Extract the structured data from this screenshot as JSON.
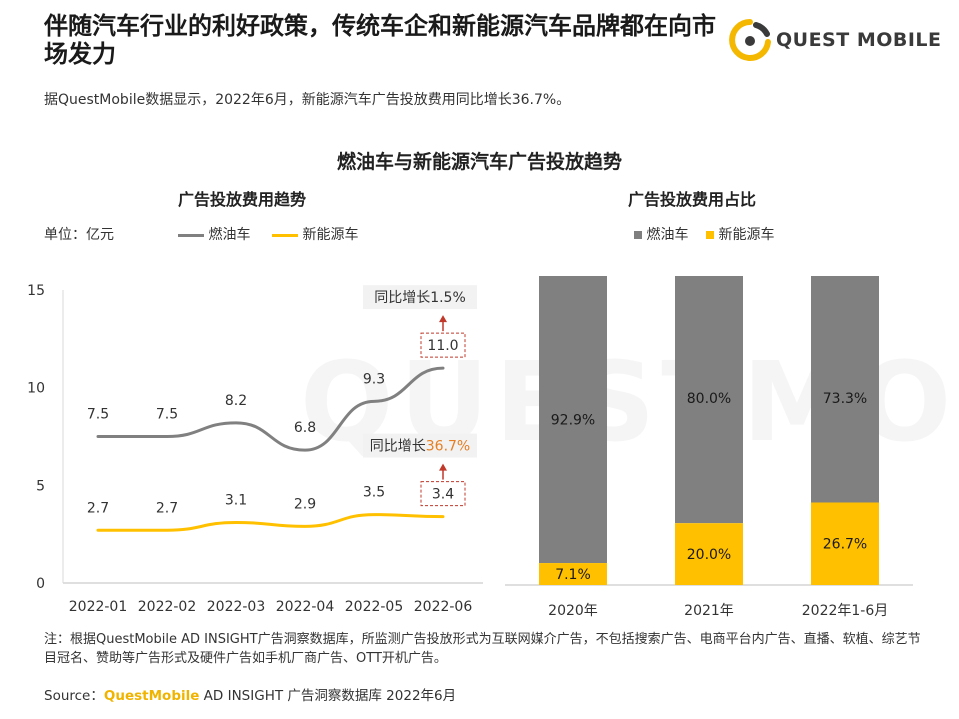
{
  "headline": "伴随汽车行业的利好政策，传统车企和新能源汽车品牌都在向市场发力",
  "logo": {
    "text": "QUEST MOBILE",
    "icon": "questmobile-logo-icon"
  },
  "subtitle": "据QuestMobile数据显示，2022年6月，新能源汽车广告投放费用同比增长36.7%。",
  "chart_heading": "燃油车与新能源汽车广告投放趋势",
  "colors": {
    "gray": "#7f7f7f",
    "yellow": "#ffc000",
    "annotation_red": "#c0392b",
    "annotation_orange": "#e67e22"
  },
  "watermark": "QUESTMOBILE",
  "chart_data": [
    {
      "type": "line",
      "title": "广告投放费用趋势",
      "unit_label": "单位：亿元",
      "categories": [
        "2022-01",
        "2022-02",
        "2022-03",
        "2022-04",
        "2022-05",
        "2022-06"
      ],
      "series": [
        {
          "name": "燃油车",
          "color": "#808080",
          "values": [
            7.5,
            7.5,
            8.2,
            6.8,
            9.3,
            11.0
          ]
        },
        {
          "name": "新能源车",
          "color": "#ffc000",
          "values": [
            2.7,
            2.7,
            3.1,
            2.9,
            3.5,
            3.4
          ]
        }
      ],
      "y_ticks": [
        "0",
        "5",
        "10",
        "15"
      ],
      "ylim": [
        0,
        15
      ],
      "annotations": [
        {
          "text_prefix": "同比增长",
          "text_value": "1.5%",
          "target": "燃油车"
        },
        {
          "text_prefix": "同比增长",
          "text_value": "36.7%",
          "target": "新能源车"
        }
      ],
      "grid": false,
      "legend_position": "top"
    },
    {
      "type": "bar",
      "stacked": true,
      "percent": true,
      "title": "广告投放费用占比",
      "categories": [
        "2020年",
        "2021年",
        "2022年1-6月"
      ],
      "series": [
        {
          "name": "燃油车",
          "color": "#808080",
          "values": [
            92.9,
            80.0,
            73.3
          ],
          "labels": [
            "92.9%",
            "80.0%",
            "73.3%"
          ]
        },
        {
          "name": "新能源车",
          "color": "#ffc000",
          "values": [
            7.1,
            20.0,
            26.7
          ],
          "labels": [
            "7.1%",
            "20.0%",
            "26.7%"
          ]
        }
      ],
      "ylim": [
        0,
        100
      ],
      "legend_position": "top"
    }
  ],
  "footnote": "注：根据QuestMobile AD INSIGHT广告洞察数据库，所监测广告投放形式为互联网媒介广告，不包括搜索广告、电商平台内广告、直播、软植、综艺节目冠名、赞助等广告形式及硬件广告如手机厂商广告、OTT开机广告。",
  "source": {
    "prefix": "Source：",
    "brand": "QuestMobile",
    "rest": " AD INSIGHT 广告洞察数据库 2022年6月"
  }
}
